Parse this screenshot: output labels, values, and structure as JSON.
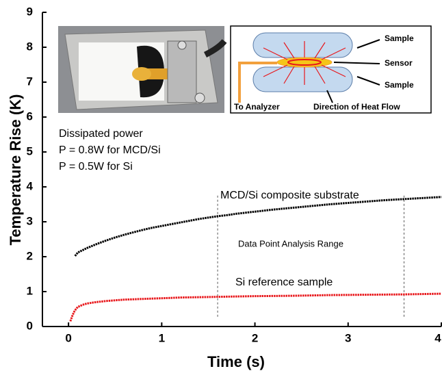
{
  "chart_data": {
    "type": "scatter",
    "x_label": "Time (s)",
    "y_label": "Temperature Rise (K)",
    "xlim": [
      -0.28,
      4.0
    ],
    "ylim": [
      0,
      9
    ],
    "xticks": [
      0,
      1,
      2,
      3,
      4
    ],
    "yticks": [
      0,
      1,
      2,
      3,
      4,
      5,
      6,
      7,
      8,
      9
    ],
    "series": [
      {
        "name": "MCD/Si composite substrate",
        "color": "#000000",
        "x": [
          0.07,
          0.1,
          0.2,
          0.3,
          0.4,
          0.5,
          0.6,
          0.7,
          0.8,
          0.9,
          1.0,
          1.1,
          1.2,
          1.3,
          1.4,
          1.5,
          1.6,
          1.7,
          1.8,
          1.9,
          2.0,
          2.2,
          2.4,
          2.6,
          2.8,
          3.0,
          3.2,
          3.4,
          3.6,
          3.8,
          4.0
        ],
        "values": [
          2.02,
          2.12,
          2.25,
          2.36,
          2.46,
          2.55,
          2.63,
          2.7,
          2.77,
          2.83,
          2.88,
          2.93,
          2.98,
          3.03,
          3.08,
          3.12,
          3.16,
          3.19,
          3.23,
          3.26,
          3.29,
          3.35,
          3.4,
          3.45,
          3.5,
          3.54,
          3.58,
          3.62,
          3.65,
          3.68,
          3.71
        ]
      },
      {
        "name": "Si reference sample",
        "color": "#e8171b",
        "x": [
          0.02,
          0.04,
          0.06,
          0.08,
          0.1,
          0.15,
          0.2,
          0.3,
          0.4,
          0.5,
          0.6,
          0.8,
          1.0,
          1.2,
          1.4,
          1.6,
          1.8,
          2.0,
          2.4,
          2.8,
          3.2,
          3.6,
          4.0
        ],
        "values": [
          0.15,
          0.3,
          0.42,
          0.5,
          0.56,
          0.62,
          0.66,
          0.7,
          0.73,
          0.75,
          0.77,
          0.79,
          0.81,
          0.83,
          0.84,
          0.85,
          0.86,
          0.87,
          0.88,
          0.9,
          0.91,
          0.92,
          0.94
        ]
      }
    ],
    "analysis_range": [
      1.6,
      3.6
    ],
    "annotations": [
      "Dissipated power",
      "P = 0.8W for MCD/Si",
      "P = 0.5W for Si",
      "Data Point Analysis Range"
    ],
    "inset_labels": [
      "Sample",
      "Sensor",
      "Sample",
      "To Analyzer",
      "Direction of Heat Flow"
    ]
  }
}
